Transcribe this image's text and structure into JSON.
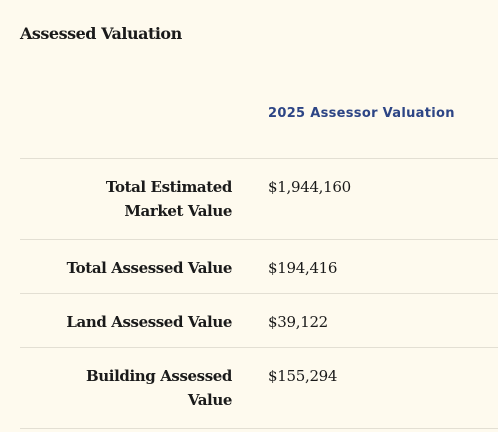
{
  "section": {
    "title": "Assessed Valuation"
  },
  "table": {
    "column_header": "2025 Assessor Valuation",
    "rows": [
      {
        "label_line1": "Total Estimated",
        "label_line2": "Market Value",
        "value": "$1,944,160"
      },
      {
        "label": "Total Assessed Value",
        "value": "$194,416"
      },
      {
        "label": "Land Assessed Value",
        "value": "$39,122"
      },
      {
        "label_line1": "Building Assessed",
        "label_line2": "Value",
        "value": "$155,294"
      }
    ]
  }
}
